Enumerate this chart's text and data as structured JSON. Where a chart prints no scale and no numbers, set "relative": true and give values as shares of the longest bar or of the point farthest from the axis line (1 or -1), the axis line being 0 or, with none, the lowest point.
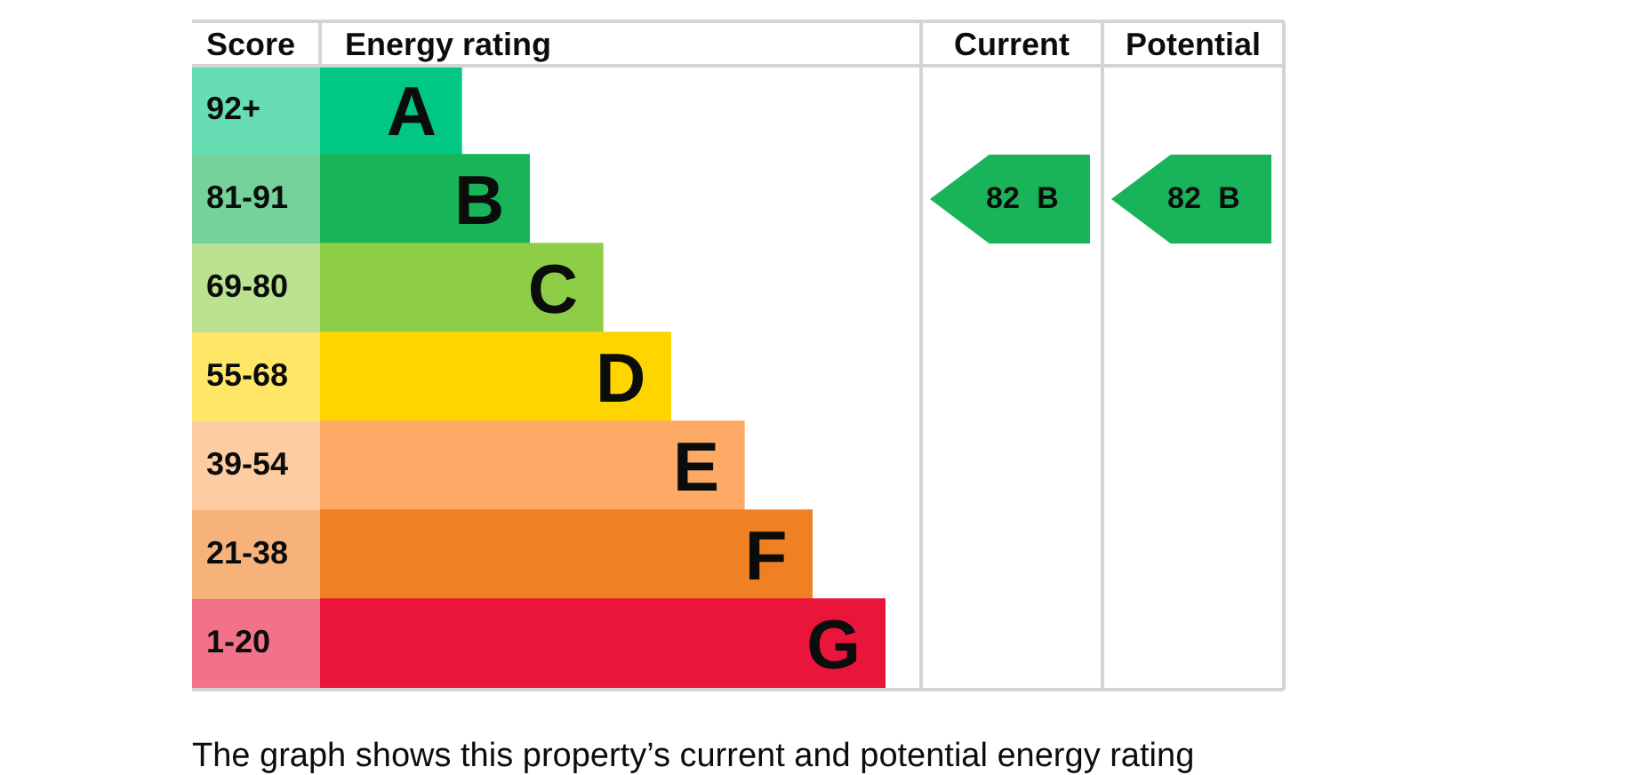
{
  "chart_data": {
    "type": "bar",
    "orientation": "horizontal",
    "relative": true,
    "xlabel": "Energy rating",
    "ylabel": "Score",
    "categories": [
      "92+",
      "81-91",
      "69-80",
      "55-68",
      "39-54",
      "21-38",
      "1-20"
    ],
    "values": [
      0.25,
      0.37,
      0.5,
      0.62,
      0.75,
      0.87,
      1
    ],
    "colors": [
      "#00c781",
      "#19b459",
      "#8dce46",
      "#ffd500",
      "#fcaa65",
      "#ef8023",
      "#e9153b"
    ],
    "annotations": [
      {
        "text": "A",
        "x": 0.25,
        "y": "92+"
      },
      {
        "text": "B",
        "x": 0.37,
        "y": "81-91"
      },
      {
        "text": "C",
        "x": 0.5,
        "y": "69-80"
      },
      {
        "text": "D",
        "x": 0.62,
        "y": "55-68"
      },
      {
        "text": "E",
        "x": 0.75,
        "y": "39-54"
      },
      {
        "text": "F",
        "x": 0.87,
        "y": "21-38"
      },
      {
        "text": "G",
        "x": 1,
        "y": "1-20"
      },
      "Current",
      "Potential",
      "82 B",
      "82 B",
      "The graph shows this property’s current and potential energy rating"
    ]
  }
}
